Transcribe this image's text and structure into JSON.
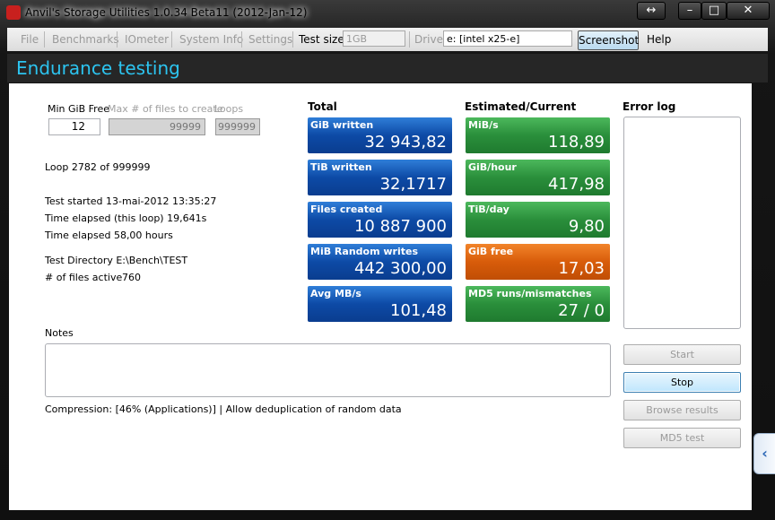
{
  "title_bar": {
    "title": "Anvil's Storage Utilities 1.0.34 Beta11 (2012-Jan-12)"
  },
  "menu": {
    "file": "File",
    "benchmarks": "Benchmarks",
    "iometer": "IOmeter",
    "system_info": "System Info",
    "settings": "Settings",
    "test_size_label": "Test size",
    "test_size_value": "1GB",
    "drive_label": "Drive",
    "drive_value": "e: [intel x25-e]",
    "screenshot": "Screenshot",
    "help": "Help"
  },
  "header": {
    "title": "Endurance testing"
  },
  "params": {
    "min_gib_free_label": "Min GiB Free",
    "min_gib_free_value": "12",
    "max_files_label": "Max # of files to create",
    "max_files_value": "99999",
    "loops_label": "Loops",
    "loops_value": "999999"
  },
  "status": {
    "loop": "Loop 2782 of 999999",
    "test_started": "Test started 13-mai-2012 13:35:27",
    "elapsed_loop": "Time elapsed (this loop) 19,641s",
    "elapsed_total": "Time elapsed 58,00 hours",
    "test_directory": "Test Directory E:\\Bench\\TEST",
    "files_active_label": "# of files active",
    "files_active_value": "760"
  },
  "total": {
    "heading": "Total",
    "tiles": [
      {
        "label": "GiB written",
        "value": "32 943,82"
      },
      {
        "label": "TiB written",
        "value": "32,1717"
      },
      {
        "label": "Files created",
        "value": "10 887 900"
      },
      {
        "label": "MiB Random writes",
        "value": "442 300,00"
      },
      {
        "label": "Avg MB/s",
        "value": "101,48"
      }
    ]
  },
  "estimated": {
    "heading": "Estimated/Current",
    "tiles": [
      {
        "label": "MiB/s",
        "value": "118,89"
      },
      {
        "label": "GiB/hour",
        "value": "417,98"
      },
      {
        "label": "TiB/day",
        "value": "9,80"
      },
      {
        "label": "GiB free",
        "value": "17,03"
      },
      {
        "label": "MD5 runs/mismatches",
        "value": "27 / 0"
      }
    ]
  },
  "error_log": {
    "heading": "Error log"
  },
  "notes": {
    "label": "Notes",
    "compression": "Compression: [46% (Applications)] | Allow deduplication of random data"
  },
  "buttons": {
    "start": "Start",
    "stop": "Stop",
    "browse": "Browse results",
    "md5": "MD5 test"
  }
}
